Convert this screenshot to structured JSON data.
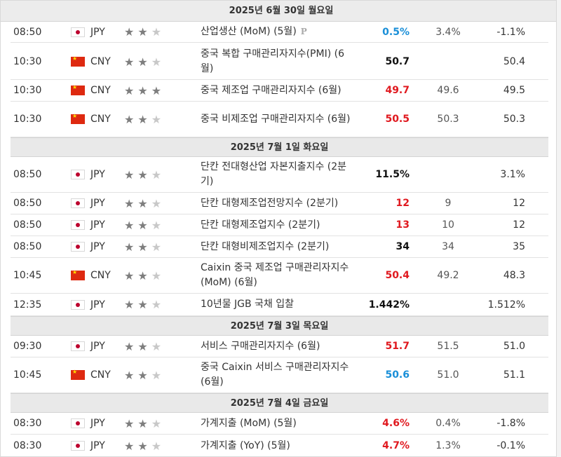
{
  "days": [
    {
      "label": "2025년 6월 30일 월요일",
      "events": [
        {
          "time": "08:50",
          "currency": "JPY",
          "flag": "jp",
          "stars": 2,
          "name": "산업생산 (MoM) (5월)",
          "preliminary": "P",
          "actual": "0.5%",
          "actual_color": "#1a8fd8",
          "forecast": "3.4%",
          "previous": "-1.1%"
        },
        {
          "time": "10:30",
          "currency": "CNY",
          "flag": "cn",
          "stars": 2,
          "name": "중국 복합 구매관리자지수(PMI) (6월)",
          "actual": "50.7",
          "actual_color": "#111111",
          "forecast": "",
          "previous": "50.4"
        },
        {
          "time": "10:30",
          "currency": "CNY",
          "flag": "cn",
          "stars": 3,
          "name": "중국 제조업 구매관리자지수 (6월)",
          "actual": "49.7",
          "actual_color": "#e0191f",
          "forecast": "49.6",
          "previous": "49.5"
        },
        {
          "time": "10:30",
          "currency": "CNY",
          "flag": "cn",
          "stars": 2,
          "name": "중국 비제조업 구매관리자지수 (6월)",
          "actual": "50.5",
          "actual_color": "#e0191f",
          "forecast": "50.3",
          "previous": "50.3"
        }
      ]
    },
    {
      "label": "2025년 7월 1일 화요일",
      "events": [
        {
          "time": "08:50",
          "currency": "JPY",
          "flag": "jp",
          "stars": 2,
          "name": "단칸 전대형산업 자본지출지수 (2분기)",
          "actual": "11.5%",
          "actual_color": "#111111",
          "forecast": "",
          "previous": "3.1%"
        },
        {
          "time": "08:50",
          "currency": "JPY",
          "flag": "jp",
          "stars": 2,
          "name": "단칸 대형제조업전망지수 (2분기)",
          "actual": "12",
          "actual_color": "#e0191f",
          "forecast": "9",
          "previous": "12"
        },
        {
          "time": "08:50",
          "currency": "JPY",
          "flag": "jp",
          "stars": 2,
          "name": "단칸 대형제조업지수 (2분기)",
          "actual": "13",
          "actual_color": "#e0191f",
          "forecast": "10",
          "previous": "12"
        },
        {
          "time": "08:50",
          "currency": "JPY",
          "flag": "jp",
          "stars": 2,
          "name": "단칸 대형비제조업지수 (2분기)",
          "actual": "34",
          "actual_color": "#111111",
          "forecast": "34",
          "previous": "35"
        },
        {
          "time": "10:45",
          "currency": "CNY",
          "flag": "cn",
          "stars": 2,
          "name": "Caixin 중국 제조업 구매관리자지수 (MoM) (6월)",
          "actual": "50.4",
          "actual_color": "#e0191f",
          "forecast": "49.2",
          "previous": "48.3"
        },
        {
          "time": "12:35",
          "currency": "JPY",
          "flag": "jp",
          "stars": 2,
          "name": "10년물 JGB 국채 입찰",
          "actual": "1.442%",
          "actual_color": "#111111",
          "forecast": "",
          "previous": "1.512%"
        }
      ]
    },
    {
      "label": "2025년 7월 3일 목요일",
      "events": [
        {
          "time": "09:30",
          "currency": "JPY",
          "flag": "jp",
          "stars": 2,
          "name": "서비스 구매관리자지수 (6월)",
          "actual": "51.7",
          "actual_color": "#e0191f",
          "forecast": "51.5",
          "previous": "51.0"
        },
        {
          "time": "10:45",
          "currency": "CNY",
          "flag": "cn",
          "stars": 2,
          "name": "중국 Caixin 서비스 구매관리자지수 (6월)",
          "actual": "50.6",
          "actual_color": "#1a8fd8",
          "forecast": "51.0",
          "previous": "51.1"
        }
      ]
    },
    {
      "label": "2025년 7월 4일 금요일",
      "events": [
        {
          "time": "08:30",
          "currency": "JPY",
          "flag": "jp",
          "stars": 2,
          "name": "가계지출 (MoM) (5월)",
          "actual": "4.6%",
          "actual_color": "#e0191f",
          "forecast": "0.4%",
          "previous": "-1.8%"
        },
        {
          "time": "08:30",
          "currency": "JPY",
          "flag": "jp",
          "stars": 2,
          "name": "가계지출 (YoY) (5월)",
          "actual": "4.7%",
          "actual_color": "#e0191f",
          "forecast": "1.3%",
          "previous": "-0.1%"
        }
      ]
    }
  ]
}
